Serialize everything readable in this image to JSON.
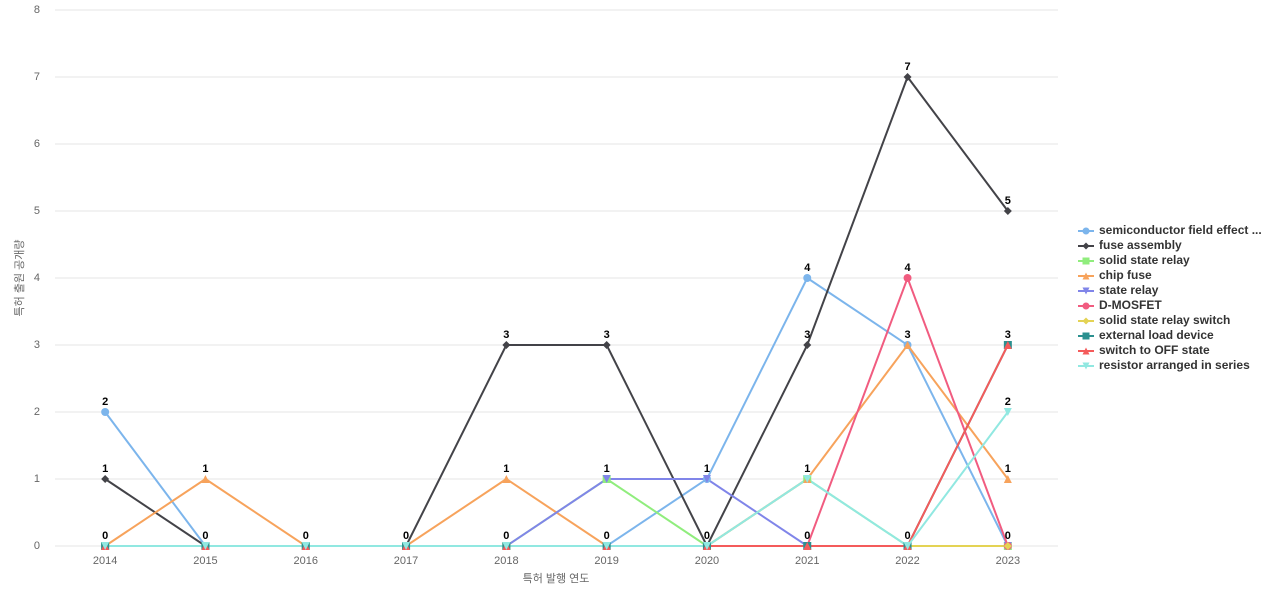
{
  "chart_data": {
    "type": "line",
    "x_label": "특허 발행 연도",
    "y_label": "특허 출원 공개량",
    "categories": [
      "2014",
      "2015",
      "2016",
      "2017",
      "2018",
      "2019",
      "2020",
      "2021",
      "2022",
      "2023"
    ],
    "ylim": [
      0,
      8
    ],
    "yticks": [
      0,
      1,
      2,
      3,
      4,
      5,
      6,
      7,
      8
    ],
    "grid": true,
    "legend": "right",
    "series": [
      {
        "name": "semiconductor field effect ...",
        "color": "#7cb5ec",
        "marker": "circle",
        "values": [
          2,
          0,
          0,
          0,
          0,
          0,
          1,
          4,
          3,
          0
        ]
      },
      {
        "name": "fuse assembly",
        "color": "#434348",
        "marker": "diamond",
        "values": [
          1,
          0,
          0,
          0,
          3,
          3,
          0,
          3,
          7,
          5
        ]
      },
      {
        "name": "solid state relay",
        "color": "#90ed7d",
        "marker": "square",
        "values": [
          0,
          0,
          0,
          0,
          0,
          1,
          0,
          1,
          0,
          0
        ]
      },
      {
        "name": "chip fuse",
        "color": "#f7a35c",
        "marker": "triangle",
        "values": [
          0,
          1,
          0,
          0,
          1,
          0,
          0,
          1,
          3,
          1
        ]
      },
      {
        "name": "state relay",
        "color": "#8085e9",
        "marker": "triangle-down",
        "values": [
          0,
          0,
          0,
          0,
          0,
          1,
          1,
          0,
          0,
          0
        ]
      },
      {
        "name": "D-MOSFET",
        "color": "#f15c80",
        "marker": "circle",
        "values": [
          0,
          0,
          0,
          0,
          0,
          0,
          0,
          0,
          4,
          0
        ]
      },
      {
        "name": "solid state relay switch",
        "color": "#e4d354",
        "marker": "diamond",
        "values": [
          0,
          0,
          0,
          0,
          0,
          0,
          0,
          0,
          0,
          0
        ]
      },
      {
        "name": "external load device",
        "color": "#2b908f",
        "marker": "square",
        "values": [
          0,
          0,
          0,
          0,
          0,
          0,
          0,
          0,
          0,
          3
        ]
      },
      {
        "name": "switch to OFF state",
        "color": "#f45b5b",
        "marker": "triangle",
        "values": [
          0,
          0,
          0,
          0,
          0,
          0,
          0,
          0,
          0,
          3
        ]
      },
      {
        "name": "resistor arranged in series",
        "color": "#91e8e1",
        "marker": "triangle-down",
        "values": [
          0,
          0,
          0,
          0,
          0,
          0,
          0,
          1,
          0,
          2
        ]
      }
    ]
  }
}
